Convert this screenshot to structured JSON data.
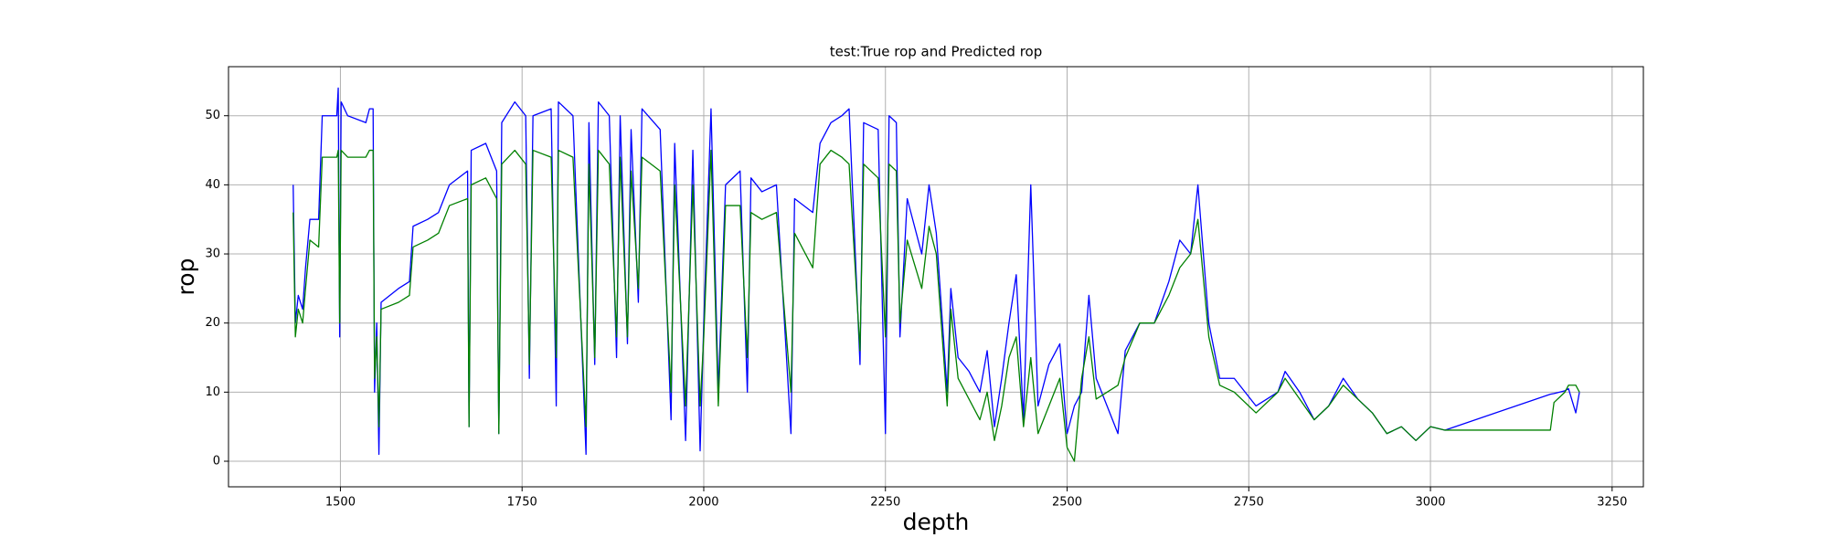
{
  "chart_data": {
    "type": "line",
    "title": "test:True rop and Predicted rop",
    "x_label": "depth",
    "y_label": "rop",
    "x": [
      1435,
      1438,
      1442,
      1448,
      1452,
      1458,
      1470,
      1475,
      1495,
      1497,
      1499,
      1501,
      1510,
      1535,
      1540,
      1545,
      1547,
      1550,
      1553,
      1556,
      1580,
      1595,
      1600,
      1620,
      1635,
      1650,
      1675,
      1677,
      1680,
      1700,
      1715,
      1718,
      1722,
      1740,
      1755,
      1760,
      1765,
      1790,
      1797,
      1800,
      1820,
      1838,
      1842,
      1850,
      1855,
      1870,
      1880,
      1885,
      1895,
      1900,
      1910,
      1915,
      1940,
      1955,
      1960,
      1975,
      1985,
      1995,
      2000,
      2010,
      2020,
      2030,
      2050,
      2060,
      2065,
      2080,
      2100,
      2120,
      2125,
      2150,
      2160,
      2175,
      2190,
      2200,
      2215,
      2220,
      2240,
      2250,
      2255,
      2265,
      2270,
      2280,
      2300,
      2310,
      2320,
      2335,
      2340,
      2350,
      2365,
      2380,
      2390,
      2400,
      2410,
      2420,
      2430,
      2440,
      2450,
      2460,
      2475,
      2490,
      2500,
      2510,
      2520,
      2530,
      2540,
      2570,
      2580,
      2600,
      2620,
      2640,
      2655,
      2670,
      2680,
      2695,
      2710,
      2730,
      2760,
      2790,
      2800,
      2820,
      2840,
      2860,
      2880,
      2900,
      2920,
      2940,
      2960,
      2980,
      3000,
      3020,
      3165,
      3170,
      3185,
      3190,
      3200,
      3205
    ],
    "series": [
      {
        "color": "#0000ff",
        "values": [
          40,
          20,
          24,
          22,
          28,
          35,
          35,
          50,
          50,
          54,
          18,
          52,
          50,
          49,
          51,
          51,
          10,
          20,
          1,
          23,
          25,
          26,
          34,
          35,
          36,
          40,
          42,
          5,
          45,
          46,
          42,
          4,
          49,
          52,
          50,
          12,
          50,
          51,
          8,
          52,
          50,
          1,
          49,
          14,
          52,
          50,
          15,
          50,
          17,
          48,
          23,
          51,
          48,
          6,
          46,
          3,
          45,
          1.5,
          20,
          51,
          10,
          40,
          42,
          10,
          41,
          39,
          40,
          4,
          38,
          36,
          46,
          49,
          50,
          51,
          14,
          49,
          48,
          4,
          50,
          49,
          18,
          38,
          30,
          40,
          33,
          10,
          25,
          15,
          13,
          10,
          16,
          5,
          12,
          20,
          27,
          6,
          40,
          8,
          14,
          17,
          4,
          8,
          10,
          24,
          12,
          4,
          16,
          20,
          20,
          26,
          32,
          30,
          40,
          20,
          12,
          12,
          8,
          10,
          13,
          10,
          6,
          8,
          12,
          9,
          7,
          4,
          5,
          3,
          5,
          4.5,
          9.7,
          9.8,
          10.2,
          10.5,
          7,
          10
        ]
      },
      {
        "color": "#008000",
        "values": [
          36,
          18,
          22,
          20,
          25,
          32,
          31,
          44,
          44,
          45,
          20,
          45,
          44,
          44,
          45,
          45,
          12,
          18,
          5,
          22,
          23,
          24,
          31,
          32,
          33,
          37,
          38,
          5,
          40,
          41,
          38,
          4,
          43,
          45,
          43,
          14,
          45,
          44,
          15,
          45,
          44,
          5,
          43,
          15,
          45,
          43,
          18,
          44,
          18,
          42,
          25,
          44,
          42,
          10,
          40,
          8,
          40,
          8,
          18,
          45,
          8,
          37,
          37,
          15,
          36,
          35,
          36,
          10,
          33,
          28,
          43,
          45,
          44,
          43,
          16,
          43,
          41,
          18,
          43,
          42,
          20,
          32,
          25,
          34,
          30,
          8,
          22,
          12,
          9,
          6,
          10,
          3,
          8,
          15,
          18,
          5,
          15,
          4,
          8,
          12,
          2,
          0,
          12,
          18,
          9,
          11,
          15,
          20,
          20,
          24,
          28,
          30,
          35,
          18,
          11,
          10,
          7,
          10,
          12,
          9,
          6,
          8,
          11,
          9,
          7,
          4,
          5,
          3,
          5,
          4.5,
          4.5,
          8.5,
          10,
          11,
          11,
          10
        ]
      }
    ],
    "xlim": [
      1346,
      3293
    ],
    "ylim": [
      -3.7,
      57.1
    ],
    "xticks": [
      1500,
      1750,
      2000,
      2250,
      2500,
      2750,
      3000,
      3250
    ],
    "yticks": [
      0,
      10,
      20,
      30,
      40,
      50
    ],
    "grid": true
  }
}
